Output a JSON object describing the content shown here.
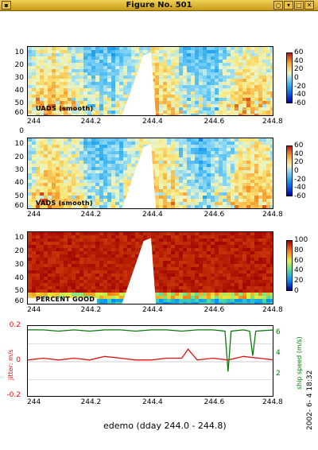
{
  "window": {
    "title": "Figure No. 501",
    "icon": "app-menu-icon",
    "buttons": [
      "circle-icon",
      "minimize-icon",
      "maximize-icon",
      "close-icon"
    ]
  },
  "panels": [
    {
      "label": "UADS (smooth)",
      "kind": "velocity",
      "xlim": [
        244,
        244.8
      ],
      "ylim": [
        60,
        5
      ],
      "x_ticks": [
        "244",
        "244.2",
        "244.4",
        "244.6",
        "244.8"
      ],
      "y_ticks": [
        "10",
        "20",
        "30",
        "40",
        "50",
        "60"
      ],
      "colorbar_ticks": [
        "60",
        "40",
        "20",
        "0",
        "-20",
        "-40",
        "-60"
      ]
    },
    {
      "label": "VADS (smooth)",
      "kind": "velocity",
      "xlim": [
        244,
        244.8
      ],
      "ylim": [
        60,
        5
      ],
      "x_ticks": [
        "244",
        "244.2",
        "244.4",
        "244.6",
        "244.8"
      ],
      "y_ticks": [
        "0",
        "10",
        "20",
        "30",
        "40",
        "50",
        "60"
      ],
      "colorbar_ticks": [
        "60",
        "40",
        "20",
        "0",
        "-20",
        "-40",
        "-60"
      ]
    },
    {
      "label": "PERCENT GOOD",
      "kind": "percent",
      "xlim": [
        244,
        244.8
      ],
      "ylim": [
        60,
        5
      ],
      "x_ticks": [
        "244",
        "244.2",
        "244.4",
        "244.6",
        "244.8"
      ],
      "y_ticks": [
        "10",
        "20",
        "30",
        "40",
        "50",
        "60"
      ],
      "colorbar_ticks": [
        "100",
        "80",
        "60",
        "40",
        "20",
        "0"
      ]
    }
  ],
  "line_panel": {
    "x_ticks": [
      "244",
      "244.2",
      "244.4",
      "244.6",
      "244.8"
    ],
    "left_ticks": [
      "0.2",
      "0",
      "-0.2"
    ],
    "right_ticks": [
      "6",
      "4",
      "2"
    ],
    "left_label": "jitter: m/s",
    "right_label": "ship speed (m/s)",
    "left_color": "#e01010",
    "right_color": "#0a7a0a"
  },
  "chart_data": {
    "type": "line",
    "xlim": [
      244,
      244.8
    ],
    "series": [
      {
        "name": "jitter: m/s",
        "axis": "left",
        "ylim": [
          -0.2,
          0.2
        ],
        "x": [
          244,
          244.05,
          244.1,
          244.15,
          244.2,
          244.25,
          244.3,
          244.35,
          244.4,
          244.45,
          244.5,
          244.52,
          244.55,
          244.6,
          244.65,
          244.7,
          244.75,
          244.8
        ],
        "y": [
          0.01,
          0.02,
          0.01,
          0.02,
          0.01,
          0.03,
          0.02,
          0.01,
          0.01,
          0.02,
          0.02,
          0.07,
          0.01,
          0.02,
          0.01,
          0.03,
          0.02,
          0.01
        ]
      },
      {
        "name": "ship speed (m/s)",
        "axis": "right",
        "ylim": [
          1,
          6.5
        ],
        "x": [
          244,
          244.05,
          244.1,
          244.15,
          244.2,
          244.25,
          244.3,
          244.35,
          244.4,
          244.45,
          244.5,
          244.55,
          244.6,
          244.64,
          244.65,
          244.66,
          244.7,
          244.72,
          244.73,
          244.74,
          244.8
        ],
        "y": [
          6.2,
          6.2,
          6.1,
          6.2,
          6.1,
          6.2,
          6.2,
          6.1,
          6.2,
          6.2,
          6.1,
          6.2,
          6.2,
          6.1,
          3.0,
          6.1,
          6.2,
          6.1,
          4.2,
          6.1,
          6.2
        ]
      }
    ]
  },
  "footer": {
    "xlabel": "edemo (dday 244.0 - 244.8)",
    "timestamp": "2002- 6- 4  18:32"
  }
}
